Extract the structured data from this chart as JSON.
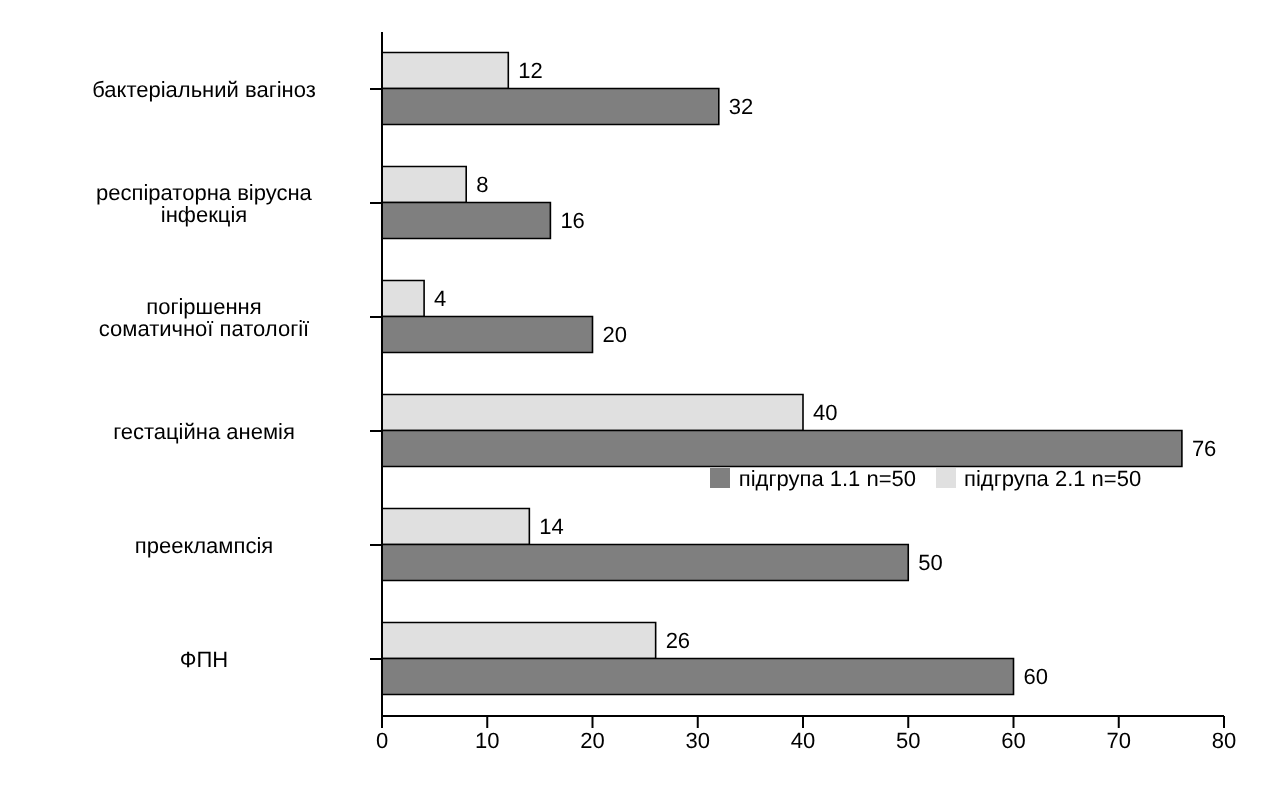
{
  "chart_data": {
    "type": "bar",
    "orientation": "horizontal",
    "categories": [
      "бактеріальний вагіноз",
      "респіраторна вірусна інфекція",
      "погіршення соматичної патології",
      "гестаційна анемія",
      "прееклампсія",
      "ФПН"
    ],
    "series": [
      {
        "name": "підгрупа 1.1 n=50",
        "color": "#7f7f7f",
        "values": [
          32,
          16,
          20,
          76,
          50,
          60
        ]
      },
      {
        "name": "підгрупа 2.1 n=50",
        "color": "#e0e0e0",
        "values": [
          12,
          8,
          4,
          40,
          14,
          26
        ]
      }
    ],
    "xlim": [
      0,
      80
    ],
    "xticks": [
      0,
      10,
      20,
      30,
      40,
      50,
      60,
      70,
      80
    ],
    "data_labels": true,
    "grid": false,
    "legend": "right"
  }
}
